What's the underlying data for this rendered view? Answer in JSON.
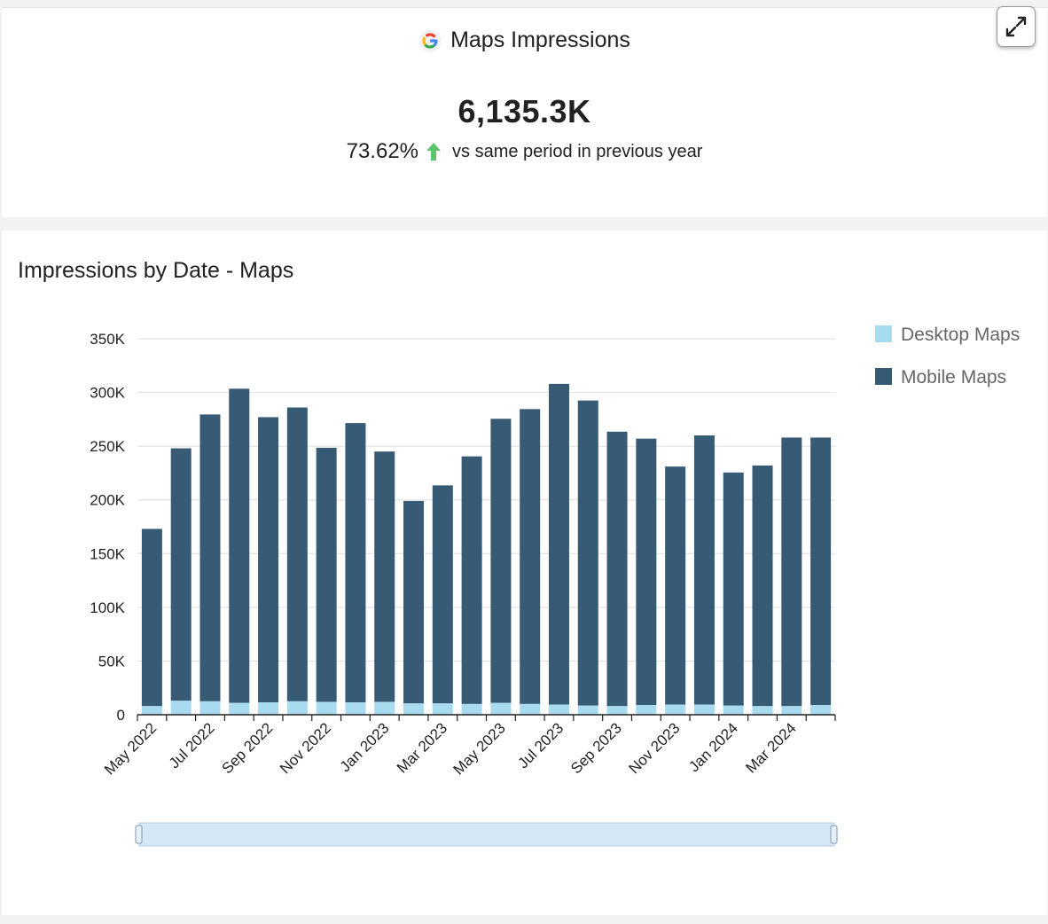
{
  "kpi": {
    "title": "Maps Impressions",
    "value": "6,135.3K",
    "change_pct": "73.62%",
    "change_direction": "up",
    "comparison_text": "vs same period in previous year"
  },
  "colors": {
    "desktop": "#a8daf0",
    "mobile": "#375a75",
    "trend_up": "#5cc46a",
    "grid": "#e3e3e3",
    "slider_fill": "#d5e8f8",
    "slider_border": "#b8cfe6"
  },
  "chart_data": {
    "type": "bar",
    "stacked": true,
    "title": "Impressions by Date - Maps",
    "categories": [
      "May 2022",
      "Jun 2022",
      "Jul 2022",
      "Aug 2022",
      "Sep 2022",
      "Oct 2022",
      "Nov 2022",
      "Dec 2022",
      "Jan 2023",
      "Feb 2023",
      "Mar 2023",
      "Apr 2023",
      "May 2023",
      "Jun 2023",
      "Jul 2023",
      "Aug 2023",
      "Sep 2023",
      "Oct 2023",
      "Nov 2023",
      "Dec 2023",
      "Jan 2024",
      "Feb 2024",
      "Mar 2024",
      "Apr 2024"
    ],
    "tick_labels": [
      "May 2022",
      "Jul 2022",
      "Sep 2022",
      "Nov 2022",
      "Jan 2023",
      "Mar 2023",
      "May 2023",
      "Jul 2023",
      "Sep 2023",
      "Nov 2023",
      "Jan 2024",
      "Mar 2024"
    ],
    "series": [
      {
        "name": "Desktop Maps",
        "values": [
          8000,
          13000,
          12500,
          11000,
          11500,
          12500,
          12000,
          11500,
          12000,
          10500,
          10500,
          10000,
          11000,
          10000,
          9500,
          8500,
          8000,
          9000,
          9500,
          9500,
          8500,
          8000,
          8000,
          9000
        ]
      },
      {
        "name": "Mobile Maps",
        "values": [
          165000,
          235000,
          267000,
          292500,
          265500,
          273500,
          236500,
          260000,
          233000,
          188500,
          203000,
          230500,
          264500,
          274500,
          298500,
          284000,
          255500,
          248000,
          221500,
          250500,
          217000,
          224000,
          250000,
          249000
        ]
      }
    ],
    "yticks": [
      0,
      50000,
      100000,
      150000,
      200000,
      250000,
      300000,
      350000
    ],
    "ytick_labels": [
      "0",
      "50K",
      "100K",
      "150K",
      "200K",
      "250K",
      "300K",
      "350K"
    ],
    "ylim": [
      0,
      350000
    ],
    "xlabel": "",
    "ylabel": "",
    "legend_position": "right",
    "grid": true,
    "range_slider": true
  }
}
